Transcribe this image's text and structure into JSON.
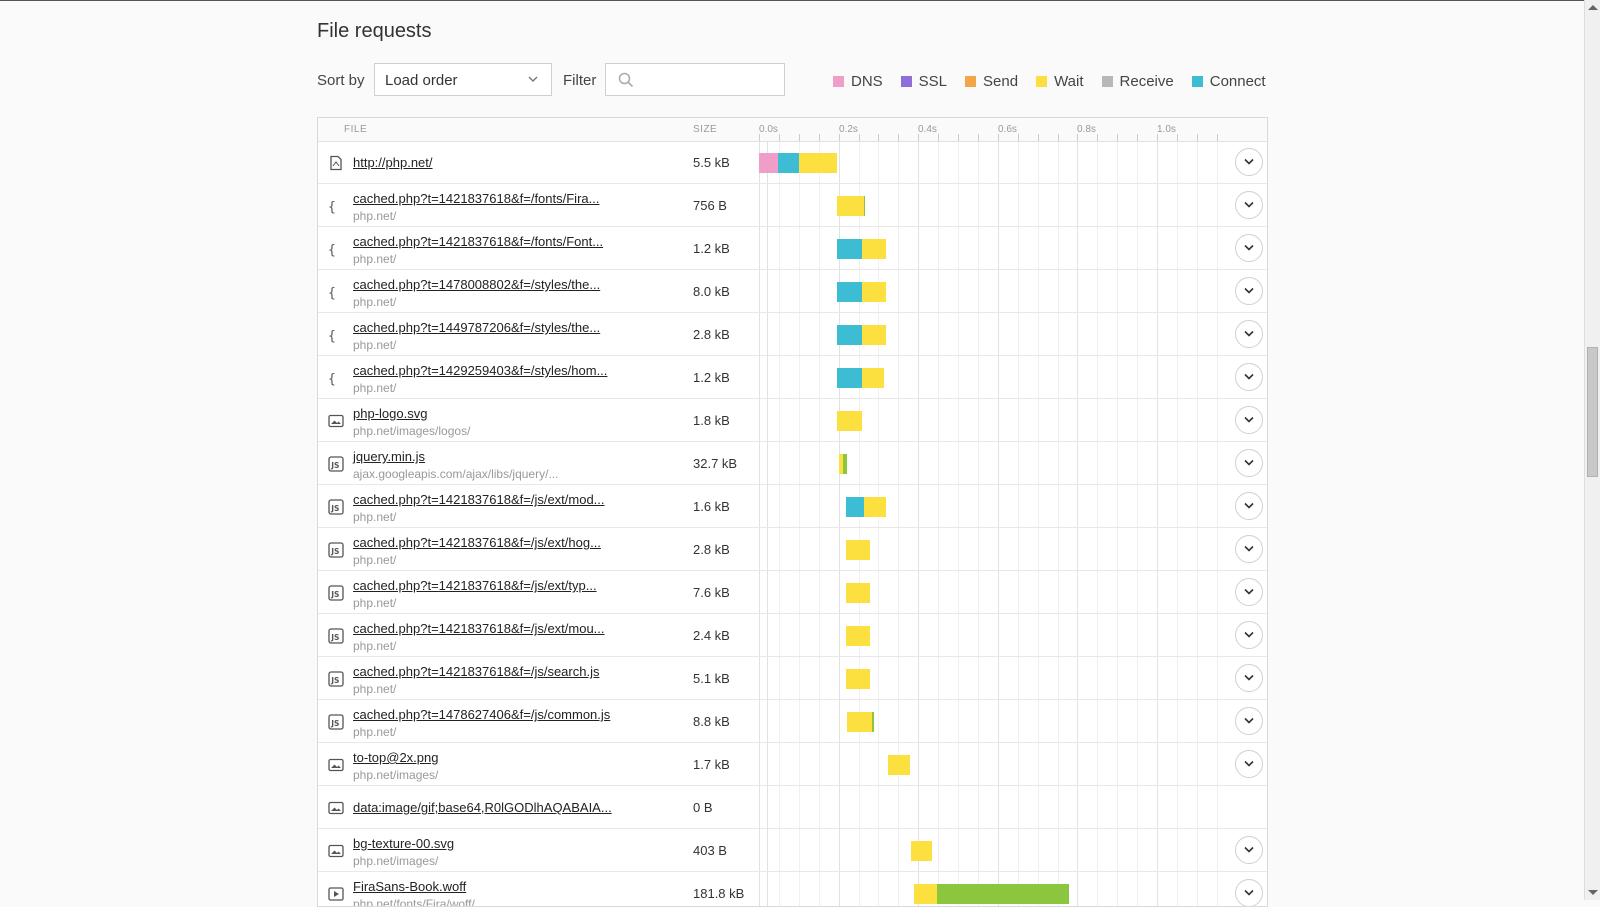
{
  "header": {
    "title": "File requests",
    "sort_label": "Sort by",
    "sort_value": "Load order",
    "filter_label": "Filter",
    "filter_placeholder": ""
  },
  "legend": [
    {
      "label": "DNS",
      "color": "#f09ec8"
    },
    {
      "label": "SSL",
      "color": "#8e6fd8"
    },
    {
      "label": "Send",
      "color": "#f2a649"
    },
    {
      "label": "Wait",
      "color": "#fbe040"
    },
    {
      "label": "Receive",
      "color": "#b8b8b8"
    },
    {
      "label": "Connect",
      "color": "#3cbdd3"
    }
  ],
  "table": {
    "col_file": "FILE",
    "col_size": "SIZE",
    "ticks": [
      "0.0s",
      "0.2s",
      "0.4s",
      "0.6s",
      "0.8s",
      "1.0s"
    ]
  },
  "requests": [
    {
      "name": "http://php.net/",
      "host": "",
      "size": "5.5 kB",
      "icon": "page-icon",
      "expandable": true,
      "segments": [
        {
          "type": "DNS",
          "start": 0.0,
          "end": 0.048
        },
        {
          "type": "Connect",
          "start": 0.048,
          "end": 0.1
        },
        {
          "type": "Wait",
          "start": 0.1,
          "end": 0.196
        }
      ]
    },
    {
      "name": "cached.php?t=1421837618&f=/fonts/Fira...",
      "host": "php.net/",
      "size": "756 B",
      "icon": "css-icon",
      "expandable": true,
      "segments": [
        {
          "type": "Wait",
          "start": 0.197,
          "end": 0.263
        },
        {
          "type": "Receive",
          "start": 0.263,
          "end": 0.266
        }
      ]
    },
    {
      "name": "cached.php?t=1421837618&f=/fonts/Font...",
      "host": "php.net/",
      "size": "1.2 kB",
      "icon": "css-icon",
      "expandable": true,
      "segments": [
        {
          "type": "Connect",
          "start": 0.197,
          "end": 0.258
        },
        {
          "type": "Wait",
          "start": 0.258,
          "end": 0.318
        }
      ]
    },
    {
      "name": "cached.php?t=1478008802&f=/styles/the...",
      "host": "php.net/",
      "size": "8.0 kB",
      "icon": "css-icon",
      "expandable": true,
      "segments": [
        {
          "type": "Connect",
          "start": 0.197,
          "end": 0.258
        },
        {
          "type": "Wait",
          "start": 0.258,
          "end": 0.318
        }
      ]
    },
    {
      "name": "cached.php?t=1449787206&f=/styles/the...",
      "host": "php.net/",
      "size": "2.8 kB",
      "icon": "css-icon",
      "expandable": true,
      "segments": [
        {
          "type": "Connect",
          "start": 0.197,
          "end": 0.258
        },
        {
          "type": "Wait",
          "start": 0.258,
          "end": 0.318
        }
      ]
    },
    {
      "name": "cached.php?t=1429259403&f=/styles/hom...",
      "host": "php.net/",
      "size": "1.2 kB",
      "icon": "css-icon",
      "expandable": true,
      "segments": [
        {
          "type": "Connect",
          "start": 0.197,
          "end": 0.258
        },
        {
          "type": "Wait",
          "start": 0.258,
          "end": 0.315
        }
      ]
    },
    {
      "name": "php-logo.svg",
      "host": "php.net/images/logos/",
      "size": "1.8 kB",
      "icon": "image-icon",
      "expandable": true,
      "segments": [
        {
          "type": "Wait",
          "start": 0.197,
          "end": 0.26
        }
      ]
    },
    {
      "name": "jquery.min.js",
      "host": "ajax.googleapis.com/ajax/libs/jquery/...",
      "size": "32.7 kB",
      "icon": "js-icon",
      "expandable": true,
      "segments": [
        {
          "type": "Wait",
          "start": 0.202,
          "end": 0.212
        },
        {
          "type": "Receive",
          "start": 0.212,
          "end": 0.22
        }
      ]
    },
    {
      "name": "cached.php?t=1421837618&f=/js/ext/mod...",
      "host": "php.net/",
      "size": "1.6 kB",
      "icon": "js-icon",
      "expandable": true,
      "segments": [
        {
          "type": "Connect",
          "start": 0.218,
          "end": 0.263
        },
        {
          "type": "Wait",
          "start": 0.263,
          "end": 0.32
        }
      ]
    },
    {
      "name": "cached.php?t=1421837618&f=/js/ext/hog...",
      "host": "php.net/",
      "size": "2.8 kB",
      "icon": "js-icon",
      "expandable": true,
      "segments": [
        {
          "type": "Wait",
          "start": 0.218,
          "end": 0.28
        }
      ]
    },
    {
      "name": "cached.php?t=1421837618&f=/js/ext/typ...",
      "host": "php.net/",
      "size": "7.6 kB",
      "icon": "js-icon",
      "expandable": true,
      "segments": [
        {
          "type": "Wait",
          "start": 0.218,
          "end": 0.278
        }
      ]
    },
    {
      "name": "cached.php?t=1421837618&f=/js/ext/mou...",
      "host": "php.net/",
      "size": "2.4 kB",
      "icon": "js-icon",
      "expandable": true,
      "segments": [
        {
          "type": "Wait",
          "start": 0.218,
          "end": 0.278
        }
      ]
    },
    {
      "name": "cached.php?t=1421837618&f=/js/search.js",
      "host": "php.net/",
      "size": "5.1 kB",
      "icon": "js-icon",
      "expandable": true,
      "segments": [
        {
          "type": "Wait",
          "start": 0.218,
          "end": 0.278
        }
      ]
    },
    {
      "name": "cached.php?t=1478627406&f=/js/common.js",
      "host": "php.net/",
      "size": "8.8 kB",
      "icon": "js-icon",
      "expandable": true,
      "segments": [
        {
          "type": "Wait",
          "start": 0.22,
          "end": 0.283
        },
        {
          "type": "Receive",
          "start": 0.283,
          "end": 0.288
        }
      ]
    },
    {
      "name": "to-top@2x.png",
      "host": "php.net/images/",
      "size": "1.7 kB",
      "icon": "image-icon",
      "expandable": true,
      "segments": [
        {
          "type": "Wait",
          "start": 0.323,
          "end": 0.38
        }
      ]
    },
    {
      "name": "data:image/gif;base64,R0lGODlhAQABAIA...",
      "host": "",
      "size": "0 B",
      "icon": "image-icon",
      "expandable": false,
      "segments": []
    },
    {
      "name": "bg-texture-00.svg",
      "host": "php.net/images/",
      "size": "403 B",
      "icon": "image-icon",
      "expandable": true,
      "segments": [
        {
          "type": "Wait",
          "start": 0.383,
          "end": 0.436
        }
      ]
    },
    {
      "name": "FiraSans-Book.woff",
      "host": "php.net/fonts/Fira/woff/",
      "size": "181.8 kB",
      "icon": "media-icon",
      "expandable": true,
      "segments": [
        {
          "type": "Wait",
          "start": 0.39,
          "end": 0.448
        },
        {
          "type": "Receive",
          "start": 0.448,
          "end": 0.78
        }
      ]
    }
  ]
}
